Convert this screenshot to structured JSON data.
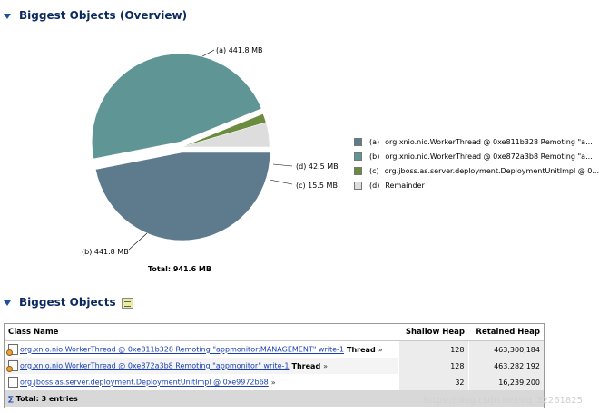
{
  "overview": {
    "title": "Biggest Objects (Overview)",
    "total_label": "Total: 941.6 MB"
  },
  "chart_data": {
    "type": "pie",
    "unit": "MB",
    "slices": [
      {
        "tag": "(a)",
        "value": 441.8,
        "label": "441.8 MB",
        "legend": "org.xnio.nio.WorkerThread @ 0xe811b328  Remoting \"a...",
        "color": "#5e7b8d"
      },
      {
        "tag": "(b)",
        "value": 441.8,
        "label": "441.8 MB",
        "legend": "org.xnio.nio.WorkerThread @ 0xe872a3b8  Remoting \"a...",
        "color": "#5f9595"
      },
      {
        "tag": "(c)",
        "value": 15.5,
        "label": "15.5 MB",
        "legend": "org.jboss.as.server.deployment.DeploymentUnitImpl @ 0...",
        "color": "#6b8c3e"
      },
      {
        "tag": "(d)",
        "value": 42.5,
        "label": "42.5 MB",
        "legend": "Remainder",
        "color": "#dddddd"
      }
    ]
  },
  "objects": {
    "title": "Biggest Objects",
    "columns": {
      "class_name": "Class Name",
      "shallow": "Shallow Heap",
      "retained": "Retained Heap"
    },
    "rows": [
      {
        "link": "org.xnio.nio.WorkerThread @ 0xe811b328 Remoting \"appmonitor:MANAGEMENT\" write-1",
        "type": "Thread",
        "more": "»",
        "shallow": "128",
        "retained": "463,300,184",
        "icon": "thread-object-icon"
      },
      {
        "link": "org.xnio.nio.WorkerThread @ 0xe872a3b8 Remoting \"appmonitor\" write-1",
        "type": "Thread",
        "more": "»",
        "shallow": "128",
        "retained": "463,282,192",
        "icon": "thread-object-icon"
      },
      {
        "link": "org.jboss.as.server.deployment.DeploymentUnitImpl @ 0xe9972b68",
        "type": "",
        "more": "»",
        "shallow": "32",
        "retained": "16,239,200",
        "icon": "object-icon"
      }
    ],
    "total": "Total: 3 entries"
  },
  "watermark": "https://blog.csdn.net/qq_32261825"
}
